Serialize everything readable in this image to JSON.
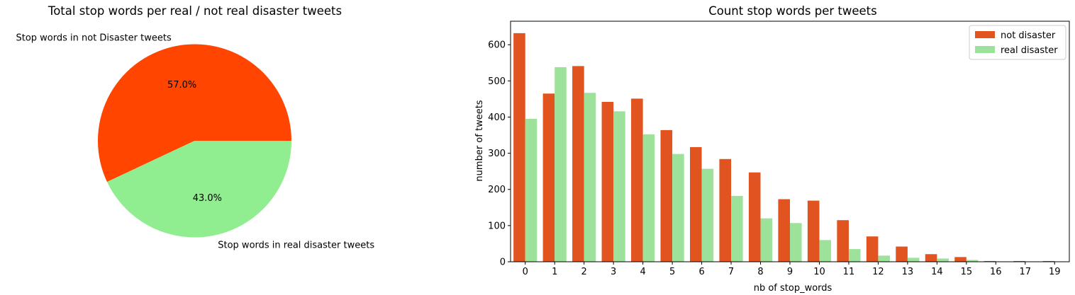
{
  "chart_data": [
    {
      "type": "pie",
      "title": "Total stop words per real / not real disaster tweets",
      "labels": [
        "Stop words in not Disaster tweets",
        "Stop words in real disaster tweets"
      ],
      "values": [
        57.0,
        43.0
      ],
      "pct_labels": [
        "57.0%",
        "43.0%"
      ],
      "colors": [
        "#ff4500",
        "#90ee90"
      ]
    },
    {
      "type": "bar",
      "title": "Count stop words per tweets",
      "xlabel": "nb of stop_words",
      "ylabel": "number of tweets",
      "categories": [
        "0",
        "1",
        "2",
        "3",
        "4",
        "5",
        "6",
        "7",
        "8",
        "9",
        "10",
        "11",
        "12",
        "13",
        "14",
        "15",
        "16",
        "17",
        "19"
      ],
      "series": [
        {
          "name": "not disaster",
          "color": "#e1541f",
          "values": [
            632,
            465,
            541,
            442,
            451,
            364,
            317,
            284,
            247,
            173,
            169,
            115,
            70,
            42,
            21,
            13,
            2,
            2,
            2
          ]
        },
        {
          "name": "real disaster",
          "color": "#9de29a",
          "values": [
            395,
            538,
            467,
            416,
            352,
            298,
            257,
            182,
            120,
            107,
            60,
            35,
            17,
            11,
            9,
            5,
            1,
            1,
            1
          ]
        }
      ],
      "ylim": [
        0,
        665
      ],
      "yticks": [
        0,
        100,
        200,
        300,
        400,
        500,
        600
      ],
      "legend": "top-right",
      "grid": false
    }
  ]
}
